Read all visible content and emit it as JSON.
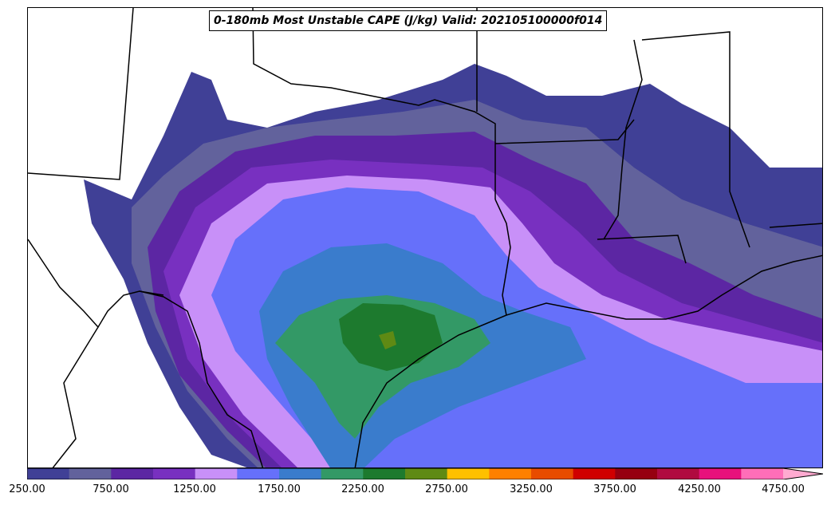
{
  "title": "0-180mb Most Unstable CAPE (J/kg) Valid: 202105100000f014",
  "colorbar": {
    "colors": [
      "#404096",
      "#62629c",
      "#5c26a3",
      "#7830c0",
      "#c890f8",
      "#6670fa",
      "#3a7ccc",
      "#339966",
      "#1d7a2e",
      "#5f8a14",
      "#ffc000",
      "#ff8000",
      "#e84c00",
      "#d00000",
      "#960010",
      "#b00a40",
      "#e8117c",
      "#ff6eb8"
    ],
    "tick_labels": [
      "250.00",
      "750.00",
      "1250.00",
      "1750.00",
      "2250.00",
      "2750.00",
      "3250.00",
      "3750.00",
      "4250.00",
      "4750.00"
    ],
    "extend": "max",
    "extend_color": "#ffaad0"
  },
  "legend_text": {
    "min": "250",
    "max": "4750",
    "units": "J/kg"
  }
}
